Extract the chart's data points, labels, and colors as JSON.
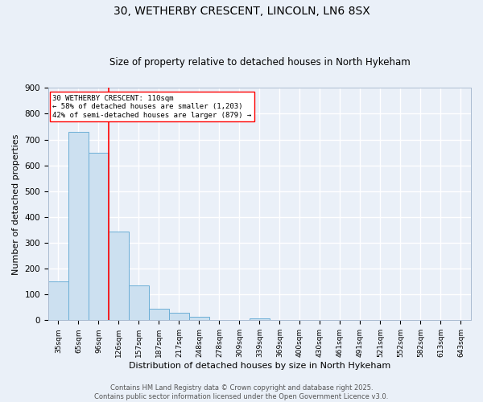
{
  "title_line1": "30, WETHERBY CRESCENT, LINCOLN, LN6 8SX",
  "title_line2": "Size of property relative to detached houses in North Hykeham",
  "xlabel": "Distribution of detached houses by size in North Hykeham",
  "ylabel": "Number of detached properties",
  "bar_labels": [
    "35sqm",
    "65sqm",
    "96sqm",
    "126sqm",
    "157sqm",
    "187sqm",
    "217sqm",
    "248sqm",
    "278sqm",
    "309sqm",
    "339sqm",
    "369sqm",
    "400sqm",
    "430sqm",
    "461sqm",
    "491sqm",
    "521sqm",
    "552sqm",
    "582sqm",
    "613sqm",
    "643sqm"
  ],
  "bar_values": [
    150,
    730,
    650,
    345,
    135,
    45,
    30,
    12,
    0,
    0,
    8,
    0,
    0,
    0,
    0,
    0,
    0,
    0,
    0,
    0,
    0
  ],
  "bar_color": "#cce0f0",
  "bar_edge_color": "#6baed6",
  "bg_color": "#eaf0f8",
  "grid_color": "#ffffff",
  "red_line_x": 2.5,
  "annotation_text": "30 WETHERBY CRESCENT: 110sqm\n← 58% of detached houses are smaller (1,203)\n42% of semi-detached houses are larger (879) →",
  "ylim": [
    0,
    900
  ],
  "yticks": [
    0,
    100,
    200,
    300,
    400,
    500,
    600,
    700,
    800,
    900
  ],
  "footer_line1": "Contains HM Land Registry data © Crown copyright and database right 2025.",
  "footer_line2": "Contains public sector information licensed under the Open Government Licence v3.0."
}
